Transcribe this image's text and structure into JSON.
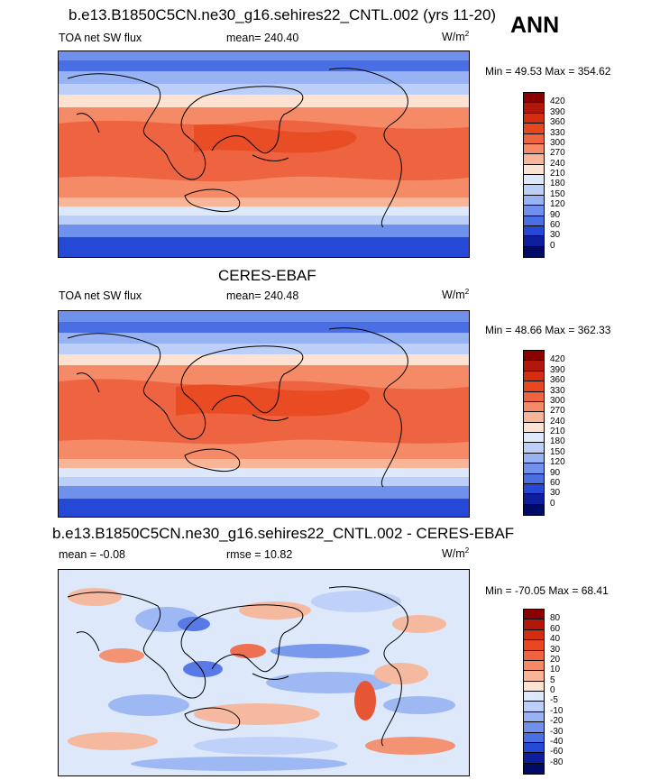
{
  "season": "ANN",
  "units_label": "W/m",
  "units_sup": "2",
  "panels": [
    {
      "title": "b.e13.B1850C5CN.ne30_g16.sehires22_CNTL.002 (yrs 11-20)",
      "left_label": "TOA net SW flux",
      "center_label": "mean= 240.40",
      "minmax": "Min =  49.53 Max = 354.62"
    },
    {
      "title": "CERES-EBAF",
      "left_label": "TOA net SW flux",
      "center_label": "mean= 240.48",
      "minmax": "Min =  48.66 Max = 362.33"
    },
    {
      "title": "b.e13.B1850C5CN.ne30_g16.sehires22_CNTL.002 - CERES-EBAF",
      "left_label": "mean =  -0.08",
      "center_label": "rmse =  10.82",
      "minmax": "Min = -70.05 Max =  68.41"
    }
  ],
  "colorbars": {
    "abs": {
      "levels": [
        "420",
        "390",
        "360",
        "330",
        "300",
        "270",
        "240",
        "210",
        "180",
        "150",
        "120",
        "90",
        "60",
        "30",
        "0"
      ],
      "colors": [
        "#8b0000",
        "#b2170d",
        "#d42e12",
        "#e7471f",
        "#ef6440",
        "#f58b66",
        "#f8b597",
        "#fde2d2",
        "#dde8fb",
        "#bccff8",
        "#97b3f3",
        "#6f91ec",
        "#4a6fe5",
        "#2548d7",
        "#0d1f9c",
        "#000b66"
      ]
    },
    "diff": {
      "levels": [
        "80",
        "60",
        "40",
        "30",
        "20",
        "10",
        "5",
        "0",
        "-5",
        "-10",
        "-20",
        "-30",
        "-40",
        "-60",
        "-80"
      ],
      "colors": [
        "#8b0000",
        "#b2170d",
        "#d42e12",
        "#e7471f",
        "#ef6440",
        "#f58b66",
        "#f8b597",
        "#fde2d2",
        "#dde8fb",
        "#bccff8",
        "#97b3f3",
        "#6f91ec",
        "#4a6fe5",
        "#2548d7",
        "#0d1f9c",
        "#000b66"
      ]
    }
  }
}
